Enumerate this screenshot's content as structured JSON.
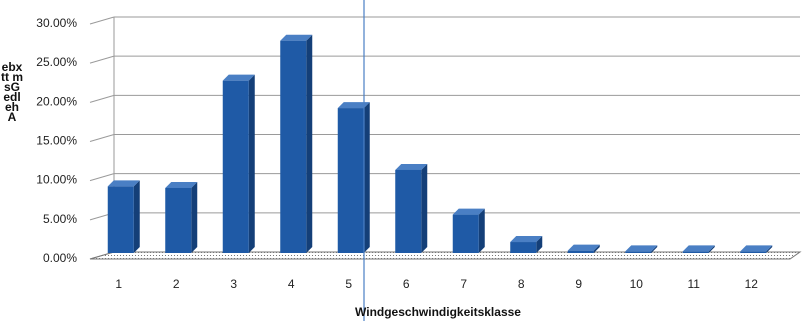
{
  "chart_data": {
    "type": "bar",
    "categories": [
      "1",
      "2",
      "3",
      "4",
      "5",
      "6",
      "7",
      "8",
      "9",
      "10",
      "11",
      "12"
    ],
    "values": [
      8.5,
      8.3,
      22.0,
      27.1,
      18.5,
      10.6,
      4.9,
      1.4,
      0.3,
      0.2,
      0.2,
      0.2
    ],
    "y_ticks": [
      "0.00%",
      "5.00%",
      "10.00%",
      "15.00%",
      "20.00%",
      "25.00%",
      "30.00%"
    ],
    "ylim": [
      0,
      30
    ],
    "xlabel": "Windgeschwindigkeitsklasse",
    "ylabel_scrambled": "ebxtt msGedlehA",
    "grid": true,
    "legend": "none",
    "colors": {
      "bar_front": "#1f5aa6",
      "bar_side": "#143f78",
      "bar_top": "#4a7fc4",
      "cursor_line": "#4a7fc4"
    }
  }
}
